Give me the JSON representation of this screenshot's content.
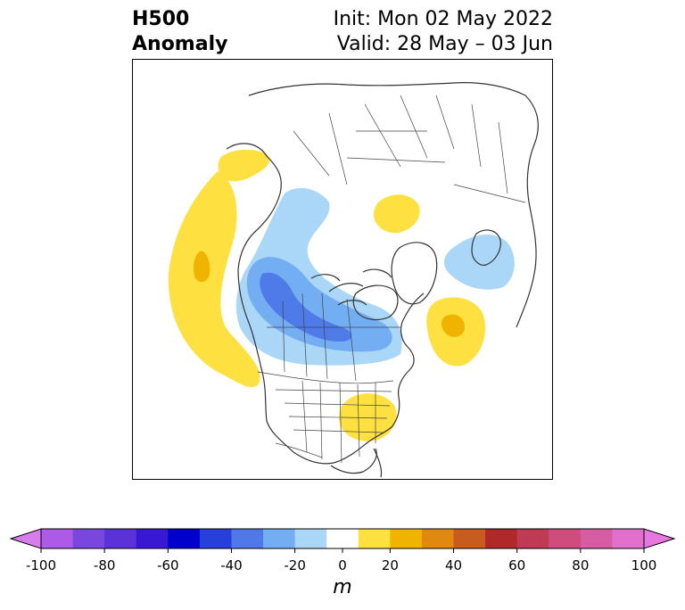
{
  "title": {
    "left_line1": "H500",
    "left_line2": "Anomaly",
    "right_line1": "Init: Mon 02 May 2022",
    "right_line2": "Valid: 28 May – 03 Jun"
  },
  "map": {
    "projection": "north-polar stereographic",
    "region": "North America / Arctic / North Atlantic",
    "features": {
      "land_fill": "#ffffff",
      "coast_color": "#333333",
      "border_color": "#444444"
    },
    "anomalies": [
      {
        "name": "NE Pacific ridge",
        "sign": "positive",
        "max_m": 30,
        "color_outer": "#fee040",
        "color_inner": "#f0b300"
      },
      {
        "name": "Alaska / Yukon ridge",
        "sign": "positive",
        "max_m": 20,
        "color_outer": "#fee040"
      },
      {
        "name": "Canada trough",
        "sign": "negative",
        "min_m": -50,
        "color_outer": "#aad6f8",
        "color_mid": "#74aef2",
        "color_inner": "#4e7be8"
      },
      {
        "name": "Siberia trough",
        "sign": "negative",
        "min_m": -20,
        "color_outer": "#aad6f8"
      },
      {
        "name": "Central Siberia ridge",
        "sign": "positive",
        "max_m": 20,
        "color_outer": "#fee040"
      },
      {
        "name": "North Atlantic ridge",
        "sign": "positive",
        "max_m": 30,
        "color_outer": "#fee040",
        "color_inner": "#f0b300"
      },
      {
        "name": "SE United States ridge",
        "sign": "positive",
        "max_m": 20,
        "color_outer": "#fee040"
      }
    ]
  },
  "colorbar": {
    "unit": "m",
    "tick_labels": [
      "-100",
      "-80",
      "-60",
      "-40",
      "-20",
      "0",
      "20",
      "40",
      "60",
      "80",
      "100"
    ],
    "levels": [
      -100,
      -90,
      -80,
      -70,
      -60,
      -50,
      -40,
      -30,
      -20,
      -10,
      10,
      20,
      30,
      40,
      50,
      60,
      70,
      80,
      90,
      100
    ],
    "colors": [
      "#ad5ae8",
      "#7a46e0",
      "#5a32d8",
      "#3818d2",
      "#0000cc",
      "#2840da",
      "#5078e6",
      "#74aef2",
      "#aad6f8",
      "#ffffff",
      "#fee040",
      "#f0b300",
      "#e08810",
      "#c85c1c",
      "#b02828",
      "#c03a55",
      "#d04c7c",
      "#d85ca4",
      "#e070cc"
    ],
    "extend_low_color": "#d77ded",
    "extend_high_color": "#e878e0"
  }
}
